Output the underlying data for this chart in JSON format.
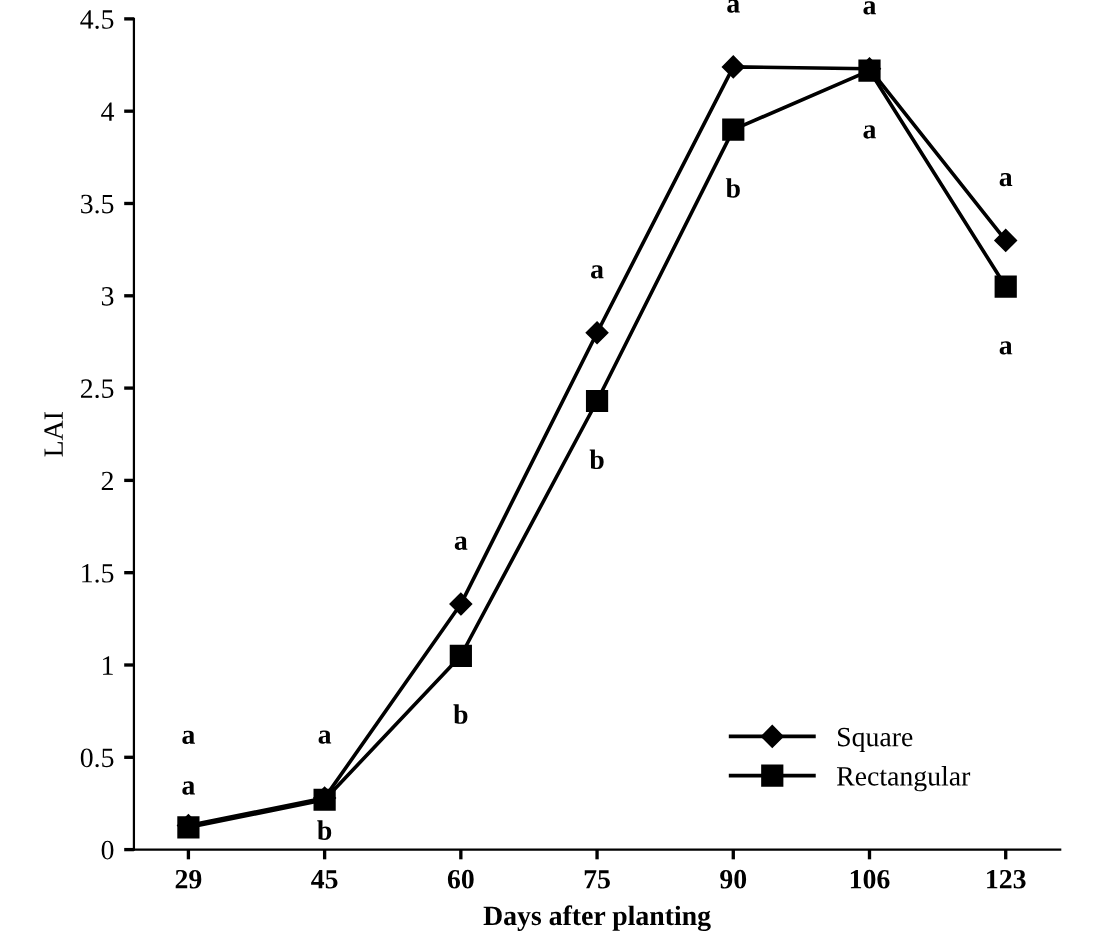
{
  "chart_data": {
    "type": "line",
    "xlabel": "Days after planting",
    "ylabel": "LAI",
    "categories": [
      "29",
      "45",
      "60",
      "75",
      "90",
      "106",
      "123"
    ],
    "series": [
      {
        "name": "Square",
        "color": "#000000",
        "marker": "diamond",
        "values": [
          0.13,
          0.28,
          1.33,
          2.8,
          4.24,
          4.23,
          3.3
        ]
      },
      {
        "name": "Rectangular",
        "color": "#000000",
        "marker": "square",
        "values": [
          0.12,
          0.27,
          1.05,
          2.43,
          3.9,
          4.22,
          3.05
        ]
      }
    ],
    "ylim": [
      0,
      4.5
    ],
    "yticks": [
      0,
      0.5,
      1,
      1.5,
      2,
      2.5,
      3,
      3.5,
      4,
      4.5
    ],
    "grid": false,
    "legend": "bottom right",
    "line_style": "solid",
    "annotations": [
      {
        "text": "a",
        "x": "29",
        "y": 0.13
      },
      {
        "text": "a",
        "x": "29",
        "y": 0.12
      },
      {
        "text": "a",
        "x": "45",
        "y": 0.28
      },
      {
        "text": "b",
        "x": "45",
        "y": 0.27
      },
      {
        "text": "a",
        "x": "60",
        "y": 1.33
      },
      {
        "text": "b",
        "x": "60",
        "y": 1.05
      },
      {
        "text": "a",
        "x": "75",
        "y": 2.8
      },
      {
        "text": "b",
        "x": "75",
        "y": 2.43
      },
      {
        "text": "a",
        "x": "90",
        "y": 4.24
      },
      {
        "text": "b",
        "x": "90",
        "y": 3.9
      },
      {
        "text": "a",
        "x": "106",
        "y": 4.23
      },
      {
        "text": "a",
        "x": "106",
        "y": 4.22
      },
      {
        "text": "a",
        "x": "123",
        "y": 3.3
      },
      {
        "text": "a",
        "x": "123",
        "y": 3.05
      }
    ]
  }
}
